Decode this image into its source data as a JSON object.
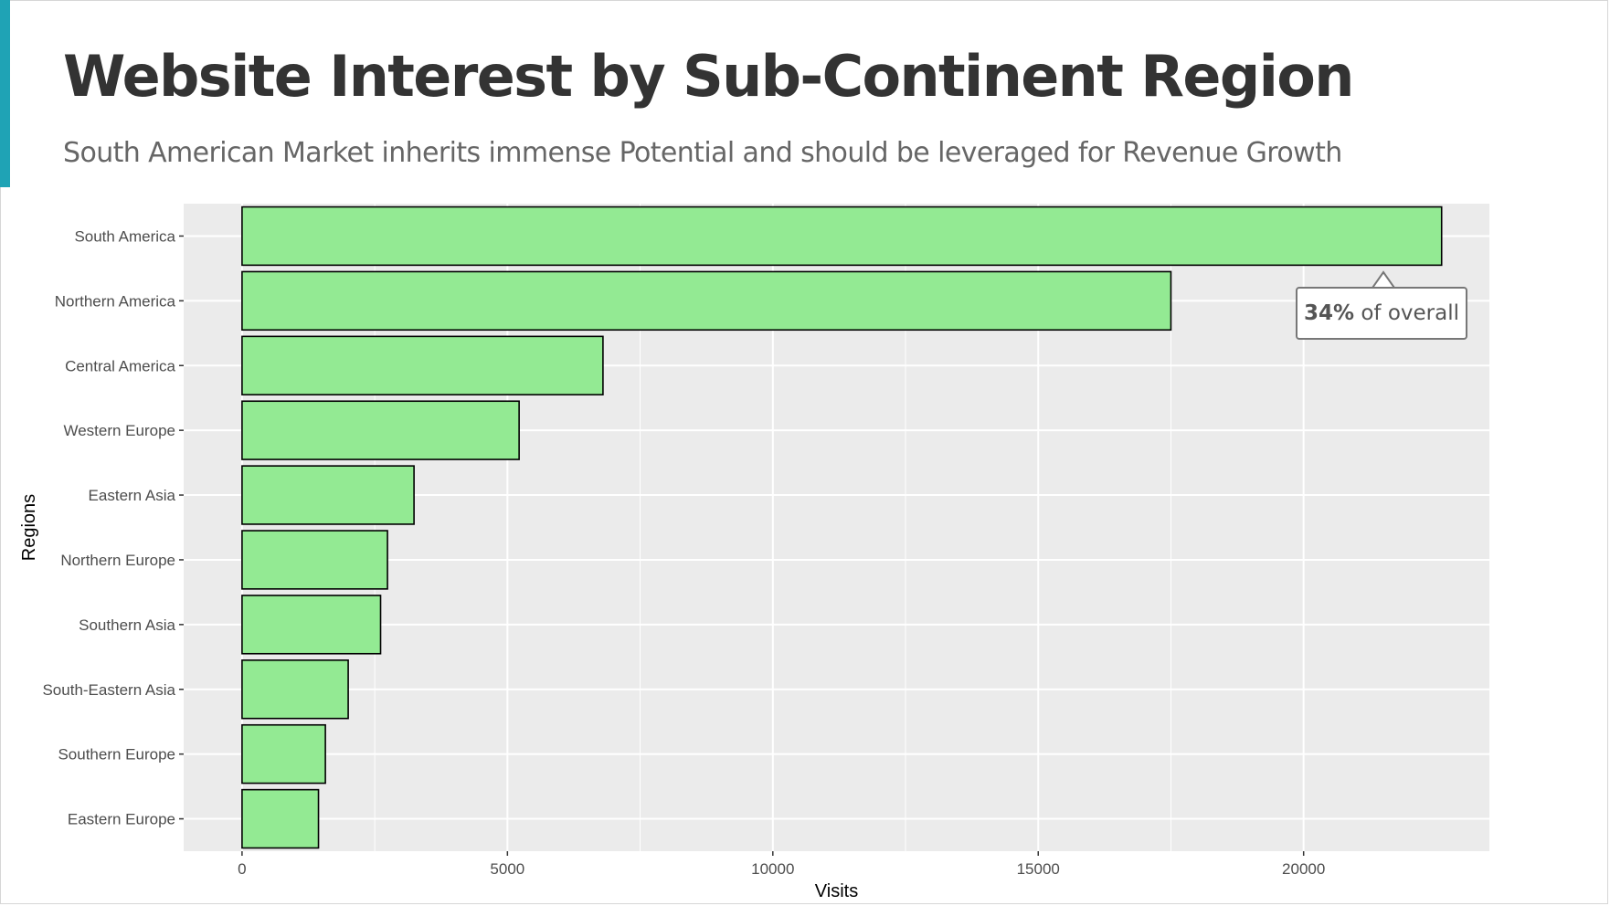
{
  "header": {
    "title": "Website Interest by Sub-Continent Region",
    "subtitle": "South American Market inherits immense Potential and should be leveraged for Revenue Growth",
    "accent_color": "#1fa3b5"
  },
  "callout": {
    "percent": "34%",
    "text": " of overall"
  },
  "chart_data": {
    "type": "bar",
    "orientation": "horizontal",
    "categories": [
      "South America",
      "Northern America",
      "Central America",
      "Western Europe",
      "Eastern Asia",
      "Northern Europe",
      "Southern Asia",
      "South-Eastern Asia",
      "Southern Europe",
      "Eastern Europe"
    ],
    "values": [
      22600,
      17500,
      6800,
      5220,
      3240,
      2740,
      2610,
      2000,
      1570,
      1440
    ],
    "xlabel": "Visits",
    "ylabel": "Regions",
    "xlim": [
      -1100,
      23500
    ],
    "xticks": [
      0,
      5000,
      10000,
      15000,
      20000
    ],
    "grid": true,
    "bar_fill": "#93ea93",
    "bar_edge": "#000000",
    "panel_bg": "#ebebeb"
  }
}
